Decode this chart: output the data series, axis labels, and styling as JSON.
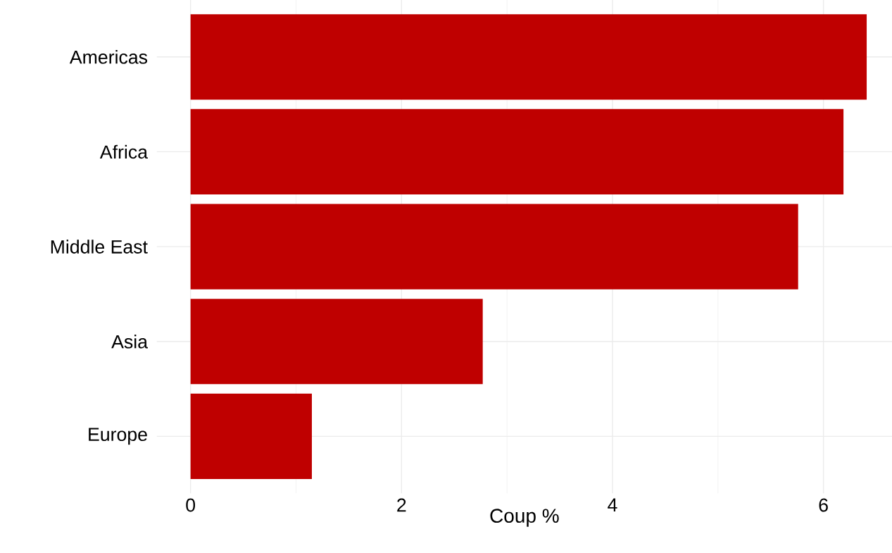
{
  "chart_data": {
    "type": "bar",
    "orientation": "horizontal",
    "xlabel": "Coup %",
    "categories": [
      "Americas",
      "Africa",
      "Middle East",
      "Asia",
      "Europe"
    ],
    "values": [
      6.41,
      6.19,
      5.76,
      2.77,
      1.15
    ],
    "color": "#bf0000",
    "xlim": [
      -0.32,
      6.65
    ],
    "xticks": [
      0,
      {
        "value": 1,
        "label": null
      },
      2,
      {
        "value": 3,
        "label": null
      },
      4,
      {
        "value": 5,
        "label": null
      },
      6
    ],
    "grid": true
  }
}
